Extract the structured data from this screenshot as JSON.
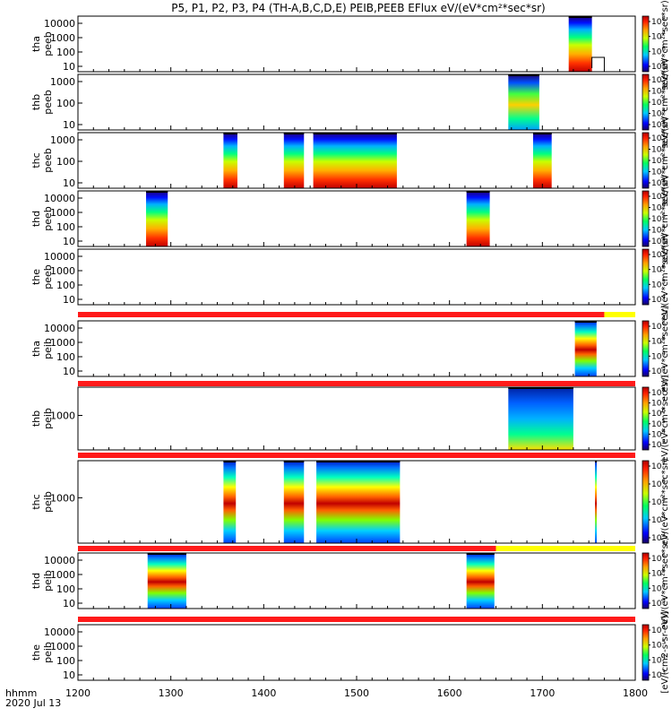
{
  "title": "P5, P1, P2, P3, P4 (TH-A,B,C,D,E) PEIB,PEEB EFlux eV/(eV*cm²*sec*sr)",
  "footer": {
    "xunit": "hhmm",
    "date": "2020 Jul 13"
  },
  "colors": {
    "bar_red": "#ff1a1a",
    "bar_yellow": "#ffff00",
    "frame": "#000000"
  },
  "chart_data": {
    "type": "heatmap",
    "x_ticks": [
      "1200",
      "1300",
      "1400",
      "1500",
      "1600",
      "1700",
      "1800"
    ],
    "x_range": [
      "12:00",
      "18:00"
    ],
    "panels": [
      {
        "probe": "tha",
        "product": "peeb",
        "y_ticks": [
          "10",
          "100",
          "1000",
          "10000"
        ],
        "colorbar": {
          "exponents": [
            "5",
            "6",
            "7",
            "8"
          ],
          "label": "eV/(eV*cm²*sec*sr)"
        },
        "blocks": [
          [
            "17:17",
            "17:32",
            "electron"
          ]
        ],
        "marks": [
          [
            "17:32",
            "17:40",
            "trace"
          ]
        ]
      },
      {
        "probe": "thb",
        "product": "peeb",
        "y_ticks": [
          "10",
          "100",
          "1000"
        ],
        "colorbar": {
          "exponents": [
            "3",
            "4",
            "5",
            "6",
            "7"
          ],
          "label": "eV/(eV*cm²*sec*sr)"
        },
        "blocks": [
          [
            "16:38",
            "16:58",
            "hot"
          ]
        ]
      },
      {
        "probe": "thc",
        "product": "peeb",
        "y_ticks": [
          "10",
          "100",
          "1000"
        ],
        "colorbar": {
          "exponents": [
            "3",
            "4",
            "5",
            "6",
            "7"
          ],
          "label": "eV/(eV*cm²*sec*sr)"
        },
        "blocks": [
          [
            "13:34",
            "13:43",
            "electron"
          ],
          [
            "14:13",
            "14:26",
            "electron"
          ],
          [
            "14:32",
            "15:26",
            "electron"
          ],
          [
            "16:54",
            "17:06",
            "electron"
          ]
        ]
      },
      {
        "probe": "thd",
        "product": "peeb",
        "y_ticks": [
          "10",
          "100",
          "1000",
          "10000"
        ],
        "colorbar": {
          "exponents": [
            "3",
            "4",
            "5",
            "6",
            "7"
          ],
          "label": "eV/(eV*cm²*sec*sr)"
        },
        "blocks": [
          [
            "12:44",
            "12:58",
            "electron"
          ],
          [
            "15:71",
            "15:86",
            "electron"
          ]
        ]
      },
      {
        "probe": "the",
        "product": "peeb",
        "y_ticks": [
          "10",
          "100",
          "1000",
          "10000"
        ],
        "colorbar": {
          "exponents": [
            "4",
            "5",
            "6",
            "7"
          ],
          "label": "eV/(eV*cm²*sec*sr)"
        },
        "blocks": [],
        "bar": {
          "red_until": "17:40",
          "yellow_until": "18:00"
        }
      },
      {
        "probe": "tha",
        "product": "peib",
        "y_ticks": [
          "10",
          "100",
          "1000",
          "10000"
        ],
        "colorbar": {
          "exponents": [
            "3",
            "4",
            "5",
            "6"
          ],
          "label": "eV/(eV*cm²*sec*sr)"
        },
        "blocks": [
          [
            "17:21",
            "17:35",
            "ion"
          ]
        ],
        "bar": {
          "red_until": "18:00",
          "yellow_until": "18:00"
        }
      },
      {
        "probe": "thb",
        "product": "peib",
        "y_ticks": [
          "1000"
        ],
        "colorbar": {
          "exponents": [
            "3",
            "4",
            "5",
            "6",
            "7",
            "8"
          ],
          "label": "eV/(eV*cm²*sec*sr)"
        },
        "blocks": [
          [
            "16:38",
            "16:80",
            "ionhot"
          ]
        ],
        "bar": {
          "red_until": "18:00",
          "yellow_until": "18:00"
        }
      },
      {
        "probe": "thc",
        "product": "peib",
        "y_ticks": [
          "1000"
        ],
        "colorbar": {
          "exponents": [
            "3",
            "4",
            "5",
            "6",
            "7"
          ],
          "label": "eV/(eV*cm²*sec*sr)"
        },
        "blocks": [
          [
            "13:34",
            "13:42",
            "ion"
          ],
          [
            "14:13",
            "14:26",
            "ion"
          ],
          [
            "14:34",
            "15:28",
            "ion"
          ],
          [
            "16:94",
            "17:08",
            "ion"
          ]
        ],
        "bar": {
          "red_until": "15:90",
          "yellow_until": "18:00"
        }
      },
      {
        "probe": "thd",
        "product": "peib",
        "y_ticks": [
          "10",
          "100",
          "1000",
          "10000"
        ],
        "colorbar": {
          "exponents": [
            "3",
            "4",
            "5",
            "6"
          ],
          "label": "eV/(eV*cm²*sec*sr)"
        },
        "blocks": [
          [
            "12:45",
            "12:70",
            "ion"
          ],
          [
            "15:71",
            "15:89",
            "ion"
          ]
        ],
        "bar": {
          "red_until": "18:00",
          "yellow_until": "18:00"
        }
      },
      {
        "probe": "the",
        "product": "peib",
        "y_ticks": [
          "10",
          "100",
          "1000",
          "10000"
        ],
        "colorbar": {
          "exponents": [
            "3",
            "4",
            "5",
            "6"
          ],
          "label": "[eV/(cm2-s-sr-eV)]"
        },
        "blocks": []
      }
    ]
  }
}
